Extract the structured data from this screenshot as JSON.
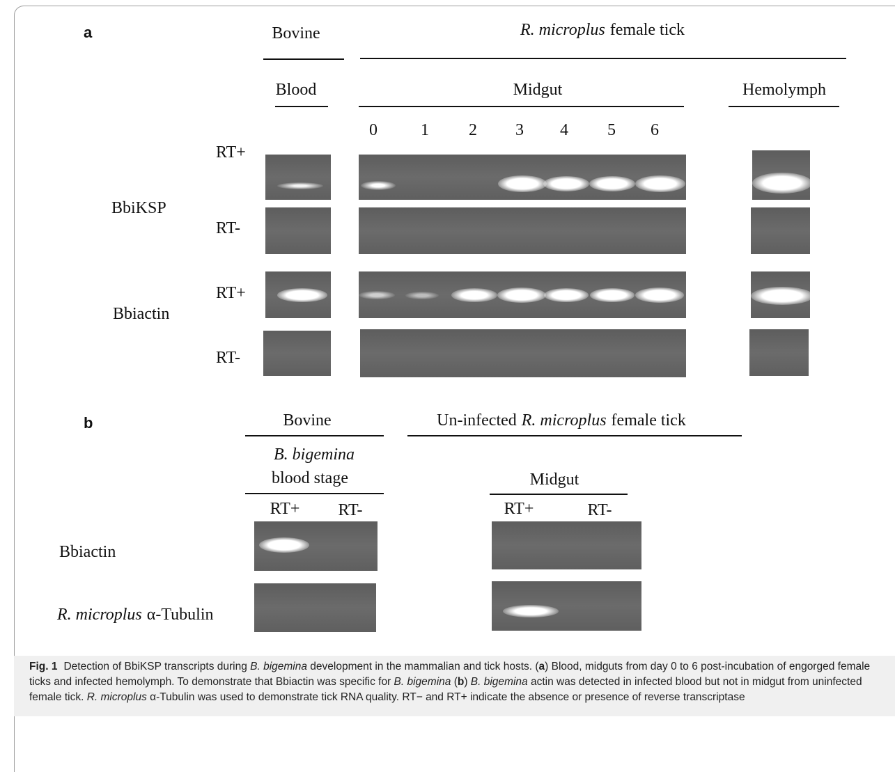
{
  "panel_a": {
    "label": "a",
    "bovine": "Bovine",
    "tick_species": "R. microplus",
    "tick_rest": "female tick",
    "blood": "Blood",
    "midgut": "Midgut",
    "hemolymph": "Hemolymph",
    "lanes": [
      "0",
      "1",
      "2",
      "3",
      "4",
      "5",
      "6"
    ],
    "genes": [
      "BbiKSP",
      "Bbiactin"
    ],
    "rt_labels": [
      "RT+",
      "RT-",
      "RT+",
      "RT-"
    ]
  },
  "panel_b": {
    "label": "b",
    "bovine": "Bovine",
    "tick_prefix": "Un-infected",
    "tick_species": "R. microplus",
    "tick_rest": "female tick",
    "stage_species": "B. bigemina",
    "stage_rest": "blood stage",
    "midgut": "Midgut",
    "rt_labels": [
      "RT+",
      "RT-",
      "RT+",
      "RT-"
    ],
    "gene": "Bbiactin",
    "tubulin_species": "R. microplus",
    "tubulin_rest": "α-Tubulin"
  },
  "caption": [
    "Fig. 1",
    "Detection of BbiKSP transcripts during ",
    "B. bigemina",
    " development in the mammalian and tick hosts. (",
    "a",
    ") Blood, midguts from day 0 to 6 post-incubation of engorged female ticks and infected hemolymph. To demonstrate that Bbiactin was specific for ",
    "B. bigemina",
    " (",
    "b",
    ") ",
    "B. bigemina",
    " actin was detected in infected blood but not in midgut from uninfected female tick. ",
    "R. microplus",
    " α-Tubulin was used to demonstrate tick RNA quality. RT− and RT+ indicate the absence or presence of reverse transcriptase"
  ]
}
